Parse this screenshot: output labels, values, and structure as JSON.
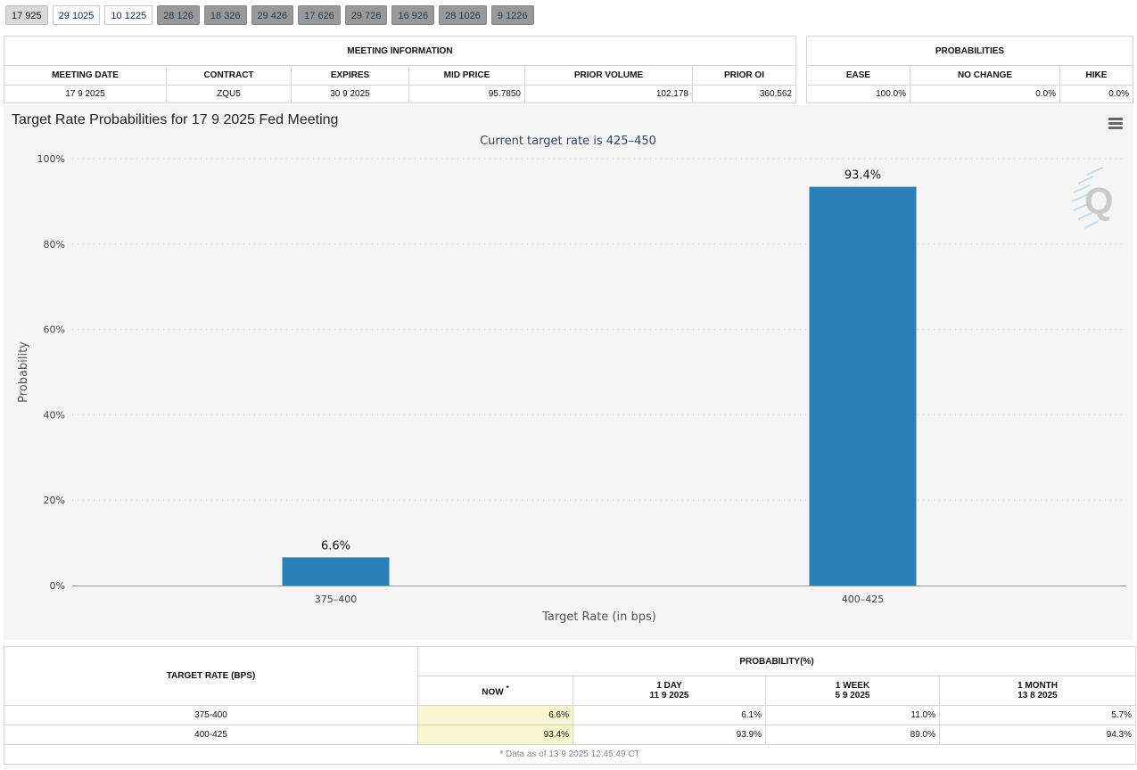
{
  "tabs": [
    "17 925",
    "29 1025",
    "10 1225",
    "28 126",
    "18 326",
    "29 426",
    "17 626",
    "29 726",
    "16 926",
    "28 1026",
    "9 1226"
  ],
  "tab_styles": [
    "active",
    "light",
    "light",
    "dark",
    "dark",
    "dark",
    "dark",
    "dark",
    "dark",
    "dark",
    "dark"
  ],
  "meeting": {
    "title": "MEETING INFORMATION",
    "headers": [
      "MEETING DATE",
      "CONTRACT",
      "EXPIRES",
      "MID PRICE",
      "PRIOR VOLUME",
      "PRIOR OI"
    ],
    "values": [
      "17 9 2025",
      "ZQU5",
      "30 9 2025",
      "95.7850",
      "102,178",
      "360,562"
    ]
  },
  "probabilities": {
    "title": "PROBABILITIES",
    "headers": [
      "EASE",
      "NO CHANGE",
      "HIKE"
    ],
    "values": [
      "100.0%",
      "0.0%",
      "0.0%"
    ]
  },
  "chart_data": {
    "type": "bar",
    "title": "Target Rate Probabilities for 17 9 2025 Fed Meeting",
    "subtitle": "Current target rate is 425–450",
    "categories": [
      "375–400",
      "400–425"
    ],
    "values": [
      6.6,
      93.4
    ],
    "value_labels": [
      "6.6%",
      "93.4%"
    ],
    "xlabel": "Target Rate (in bps)",
    "ylabel": "Probability",
    "ylim": [
      0,
      100
    ],
    "yticks": [
      0,
      20,
      40,
      60,
      80,
      100
    ],
    "ytick_labels": [
      "0%",
      "20%",
      "40%",
      "60%",
      "80%",
      "100%"
    ],
    "grid": true,
    "bar_color": "#2b7fb8"
  },
  "prob_table": {
    "rate_header": "TARGET RATE (BPS)",
    "prob_header": "PROBABILITY(%)",
    "cols": [
      {
        "label": "NOW",
        "sup": "*",
        "date": ""
      },
      {
        "label": "1 DAY",
        "sup": "",
        "date": "11 9 2025"
      },
      {
        "label": "1 WEEK",
        "sup": "",
        "date": "5 9 2025"
      },
      {
        "label": "1 MONTH",
        "sup": "",
        "date": "13 8 2025"
      }
    ],
    "rows": [
      {
        "rate": "375-400",
        "values": [
          "6.6%",
          "6.1%",
          "11.0%",
          "5.7%"
        ]
      },
      {
        "rate": "400-425",
        "values": [
          "93.4%",
          "93.9%",
          "89.0%",
          "94.3%"
        ]
      }
    ],
    "footnote": "* Data as of 13 9 2025 12:45:49 CT"
  }
}
